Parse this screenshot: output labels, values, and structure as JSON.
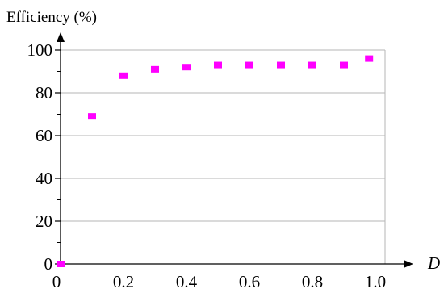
{
  "chart_data": {
    "type": "scatter",
    "title": "",
    "ylabel": "Efficiency (%)",
    "xlabel": "D",
    "xlim": [
      0,
      1.0
    ],
    "ylim": [
      0,
      100
    ],
    "x_ticks": [
      "0",
      "0.2",
      "0.4",
      "0.6",
      "0.8",
      "1.0"
    ],
    "y_ticks": [
      "0",
      "20",
      "40",
      "60",
      "80",
      "100"
    ],
    "grid": "horizontal",
    "marker_color": "#ff00ff",
    "marker_shape": "square",
    "series": [
      {
        "x": [
          0.0,
          0.1,
          0.2,
          0.3,
          0.4,
          0.5,
          0.6,
          0.7,
          0.8,
          0.9,
          0.98
        ],
        "y": [
          0,
          69,
          88,
          91,
          92,
          93,
          93,
          93,
          93,
          93,
          96
        ]
      }
    ]
  }
}
